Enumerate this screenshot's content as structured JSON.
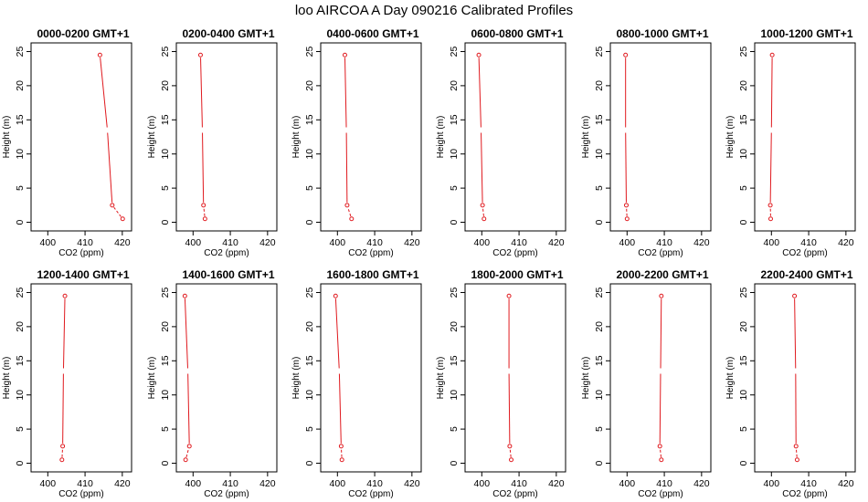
{
  "title": "loo AIRCOA A  Day 090216  Calibrated Profiles",
  "colors": {
    "profile": "#e0191e",
    "axis": "#000000",
    "background": "#ffffff"
  },
  "chart_data": {
    "type": "line",
    "layout": "2x6 grid of small multiples",
    "xlabel": "CO2 (ppm)",
    "ylabel": "Height (m)",
    "xlim": [
      396,
      422
    ],
    "ylim": [
      -1,
      26
    ],
    "xticks": [
      400,
      410,
      420
    ],
    "yticks": [
      0,
      5,
      10,
      15,
      20,
      25
    ],
    "heights": [
      0.5,
      2.5,
      13.5,
      24.5
    ],
    "grid": false,
    "panels": [
      {
        "title": "0000-0200 GMT+1",
        "values": [
          420.1,
          417.3,
          416.0,
          414.0
        ]
      },
      {
        "title": "0200-0400 GMT+1",
        "values": [
          403.2,
          402.8,
          402.5,
          402.0
        ]
      },
      {
        "title": "0400-0600 GMT+1",
        "values": [
          403.8,
          402.6,
          402.4,
          402.0
        ]
      },
      {
        "title": "0600-0800 GMT+1",
        "values": [
          400.6,
          400.2,
          399.8,
          399.2
        ]
      },
      {
        "title": "0800-1000 GMT+1",
        "values": [
          400.0,
          399.8,
          399.6,
          399.6
        ]
      },
      {
        "title": "1000-1200 GMT+1",
        "values": [
          399.8,
          399.7,
          400.0,
          400.2
        ]
      },
      {
        "title": "1200-1400 GMT+1",
        "values": [
          403.8,
          404.0,
          404.2,
          404.6
        ]
      },
      {
        "title": "1400-1600 GMT+1",
        "values": [
          398.0,
          399.0,
          398.6,
          397.8
        ]
      },
      {
        "title": "1600-1800 GMT+1",
        "values": [
          401.2,
          401.0,
          400.5,
          399.5
        ]
      },
      {
        "title": "1800-2000 GMT+1",
        "values": [
          407.9,
          407.5,
          407.3,
          407.3
        ]
      },
      {
        "title": "2000-2200 GMT+1",
        "values": [
          409.2,
          408.8,
          409.0,
          409.2
        ]
      },
      {
        "title": "2200-2400 GMT+1",
        "values": [
          406.9,
          406.6,
          406.5,
          406.2
        ]
      }
    ]
  }
}
